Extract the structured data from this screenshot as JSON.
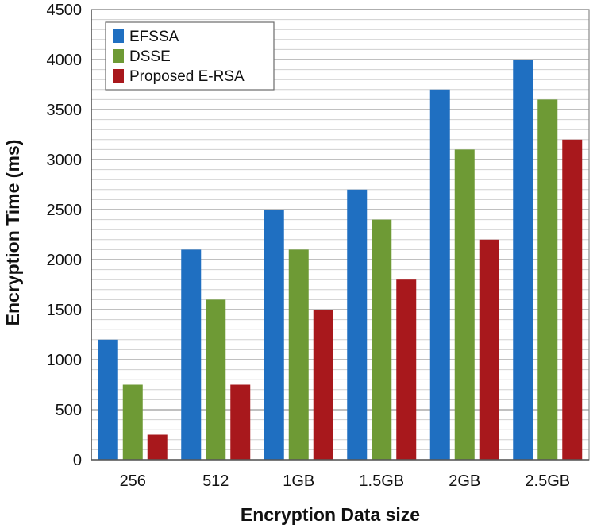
{
  "chart_data": {
    "type": "bar",
    "title": "",
    "xlabel": "Encryption Data size",
    "ylabel": "Encryption Time (ms)",
    "categories": [
      "256",
      "512",
      "1GB",
      "1.5GB",
      "2GB",
      "2.5GB"
    ],
    "ylim": [
      0,
      4500
    ],
    "y_major_step": 500,
    "y_minor_step": 100,
    "grid": true,
    "legend_position": "top-left",
    "series": [
      {
        "name": "EFSSA",
        "color": "#1f6fc1",
        "values": [
          1200,
          2100,
          2500,
          2700,
          3700,
          4000
        ]
      },
      {
        "name": "DSSE",
        "color": "#6e9a35",
        "values": [
          750,
          1600,
          2100,
          2400,
          3100,
          3600
        ]
      },
      {
        "name": "Proposed E-RSA",
        "color": "#a8181c",
        "values": [
          250,
          750,
          1500,
          1800,
          2200,
          3200
        ]
      }
    ]
  }
}
